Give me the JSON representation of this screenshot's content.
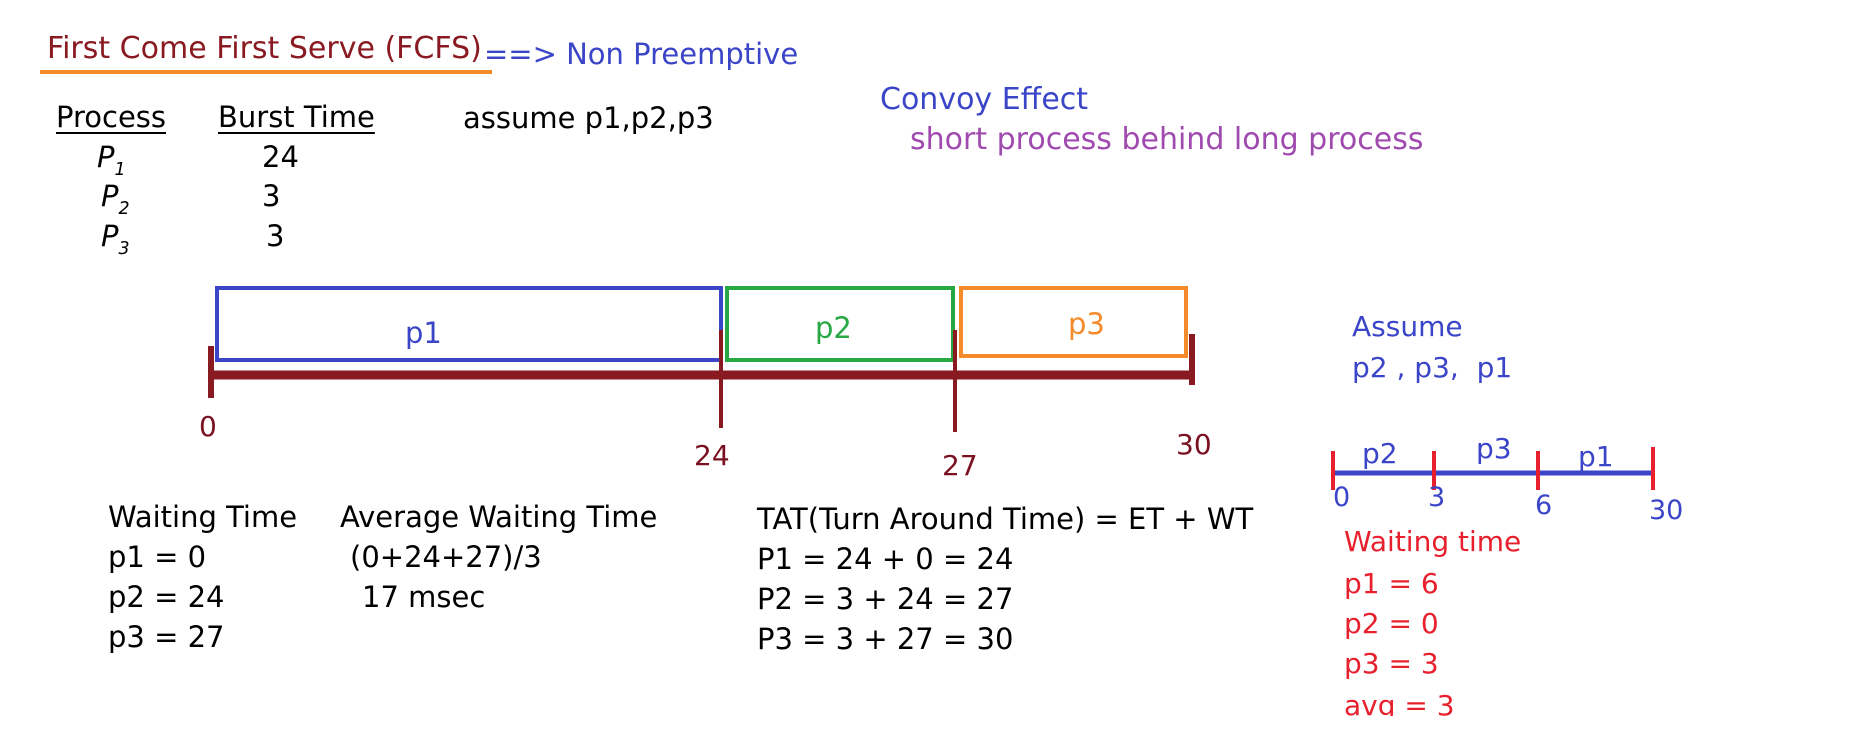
{
  "title": {
    "main": "First Come First Serve (FCFS)",
    "arrow": "==> Non Preemptive"
  },
  "convoy": {
    "heading": "Convoy Effect",
    "desc": "short process behind long process"
  },
  "table": {
    "col_process": "Process",
    "col_burst": "Burst Time",
    "assume": "assume p1,p2,p3",
    "rows": [
      {
        "letter": "P",
        "sub": "1",
        "burst": "24"
      },
      {
        "letter": "P",
        "sub": "2",
        "burst": "3"
      },
      {
        "letter": "P",
        "sub": "3",
        "burst": "3"
      }
    ]
  },
  "gantt_main": {
    "bars": [
      {
        "label": "p1",
        "start": 0,
        "end": 24,
        "color": "#3a45c8"
      },
      {
        "label": "p2",
        "start": 24,
        "end": 27,
        "color": "#27a844"
      },
      {
        "label": "p3",
        "start": 27,
        "end": 30,
        "color": "#f58a2a"
      }
    ],
    "ticks": [
      "0",
      "24",
      "27",
      "30"
    ],
    "axis_color": "#8a1a22"
  },
  "waiting": {
    "heading": "Waiting Time",
    "lines": [
      "p1 = 0",
      "p2 = 24",
      "p3 = 27"
    ]
  },
  "average": {
    "heading": "Average Waiting Time",
    "formula": "(0+24+27)/3",
    "result": "17 msec"
  },
  "tat": {
    "heading": "TAT(Turn Around Time) = ET + WT",
    "lines": [
      "P1 = 24 + 0 = 24",
      "P2 = 3 + 24 = 27",
      "P3 = 3 + 27 = 30"
    ]
  },
  "alt": {
    "heading": "Assume",
    "order": "p2 , p3,  p1",
    "segments": [
      "p2",
      "p3",
      "p1"
    ],
    "ticks": [
      "0",
      "3",
      "6",
      "30"
    ],
    "waiting_heading": "Waiting time",
    "waiting_lines": [
      "p1 = 6",
      "p2 = 0",
      "p3 = 3",
      "avg = 3"
    ]
  }
}
